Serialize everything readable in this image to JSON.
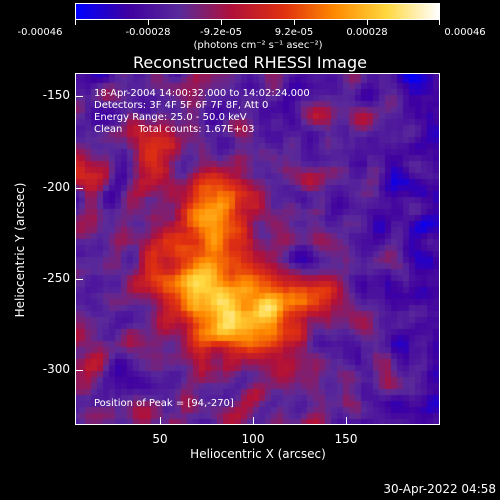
{
  "colorbar": {
    "labels": [
      "-0.00046",
      "-0.00028",
      "-9.2e-05",
      "9.2e-05",
      "0.00028",
      "0.00046"
    ],
    "units": "(photons cm⁻² s⁻¹ asec⁻²)",
    "colormap": [
      "#0000ff",
      "#3f00a0",
      "#5a2a9a",
      "#b0103a",
      "#e03010",
      "#ff8a00",
      "#ffd840",
      "#ffffff"
    ]
  },
  "title": "Reconstructed RHESSI Image",
  "info": {
    "time_range": "18-Apr-2004 14:00:32.000 to 14:02:24.000",
    "detectors": "Detectors: 3F 4F 5F 6F 7F 8F, Att 0",
    "energy": "Energy Range: 25.0 - 50.0 keV",
    "clean": "Clean     Total counts: 1.67E+03",
    "peak": "Position of Peak = [94,-270]"
  },
  "axes": {
    "xlabel": "Heliocentric X (arcsec)",
    "ylabel": "Heliocentric Y (arcsec)",
    "xticks": [
      "50",
      "100",
      "150"
    ],
    "yticks": [
      "-150",
      "-200",
      "-250",
      "-300"
    ]
  },
  "timestamp": "30-Apr-2022 04:58"
}
